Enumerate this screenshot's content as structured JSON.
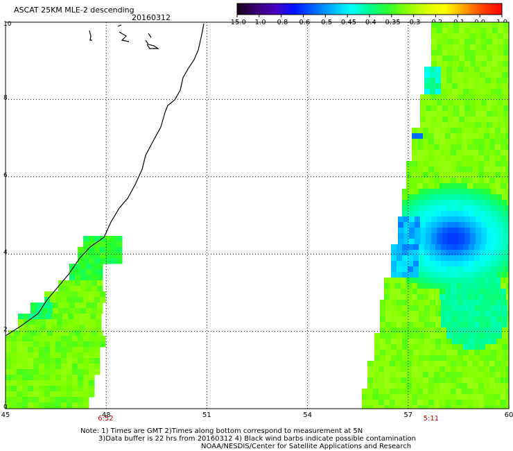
{
  "header": {
    "title": "ASCAT 25KM MLE-2 descending",
    "date": "20160312"
  },
  "colorbar": {
    "labels": [
      "-15.0",
      "-1.0",
      "-0.8",
      "-0.6",
      "-0.5",
      "-0.45",
      "-0.4",
      "-0.35",
      "-0.3",
      "-0.2",
      "-0.1",
      "0.0",
      "1.0"
    ],
    "stops": [
      "#1a001a",
      "#3a0070",
      "#4a00c0",
      "#0010ff",
      "#0060ff",
      "#00b0ff",
      "#00ffff",
      "#00ff90",
      "#30ff30",
      "#90ff00",
      "#d8ff00",
      "#ffff00",
      "#ffa000",
      "#ff4000",
      "#ff0000"
    ]
  },
  "map": {
    "x_labels": [
      "45",
      "48",
      "51",
      "54",
      "57",
      "60"
    ],
    "y_labels": [
      "0",
      "2",
      "4",
      "6",
      "8",
      "10"
    ],
    "lon_range": [
      45,
      60
    ],
    "lat_range": [
      0,
      10
    ],
    "times": [
      {
        "label": "6:52",
        "lon": 48
      },
      {
        "label": "5:11",
        "lon": 57.7
      }
    ]
  },
  "notes": {
    "line1": "Note: 1) Times are GMT 2)Times along bottom correspond to measurement at 5N",
    "line2": "3)Data buffer is 22 hrs from 20160312 4) Black wind barbs indicate possible contamination",
    "line3": "NOAA/NESDIS/Center for Satellite Applications and Research"
  }
}
